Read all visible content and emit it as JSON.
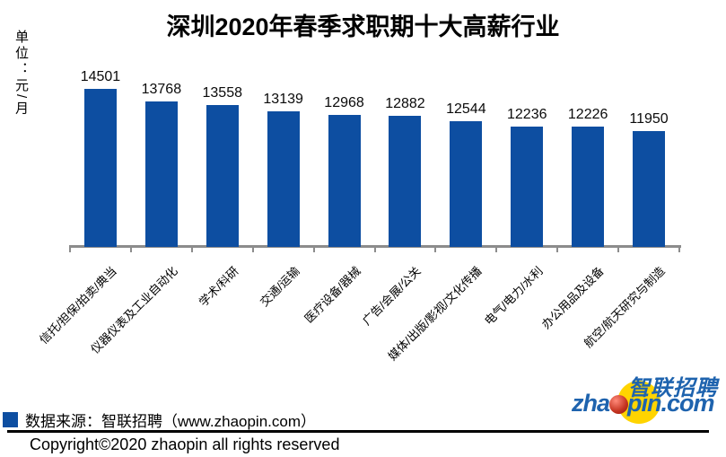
{
  "chart_data": {
    "type": "bar",
    "title": "深圳2020年春季求职期十大高薪行业",
    "unit": "单位：元/月",
    "ylabel": "单位：元/月",
    "xlabel": "",
    "categories": [
      "信托/担保/拍卖/典当",
      "仪器仪表及工业自动化",
      "学术/科研",
      "交通/运输",
      "医疗设备/器械",
      "广告/会展/公关",
      "媒体/出版/影视/文化传播",
      "电气/电力/水利",
      "办公用品及设备",
      "航空/航天研究与制造"
    ],
    "values": [
      14501,
      13768,
      13558,
      13139,
      12968,
      12882,
      12544,
      12236,
      12226,
      11950
    ],
    "bar_color": "#0D4EA1",
    "axis_color": "#8C8C8C",
    "ylim": [
      5000,
      15000
    ],
    "grid": false,
    "value_labels": true,
    "x_tick_rotation_deg": -45,
    "legend_position": "bottom-left"
  },
  "footer": {
    "source_label": "数据来源：智联招聘（www.zhaopin.com）",
    "copyright": "Copyright©2020 zhaopin all rights reserved"
  },
  "logo": {
    "cn_text": "智联招聘",
    "en_left": "zha",
    "en_right": "pin.com",
    "blue": "#1E63AE",
    "yellow": "#FFD400",
    "red": "#C3321F"
  }
}
